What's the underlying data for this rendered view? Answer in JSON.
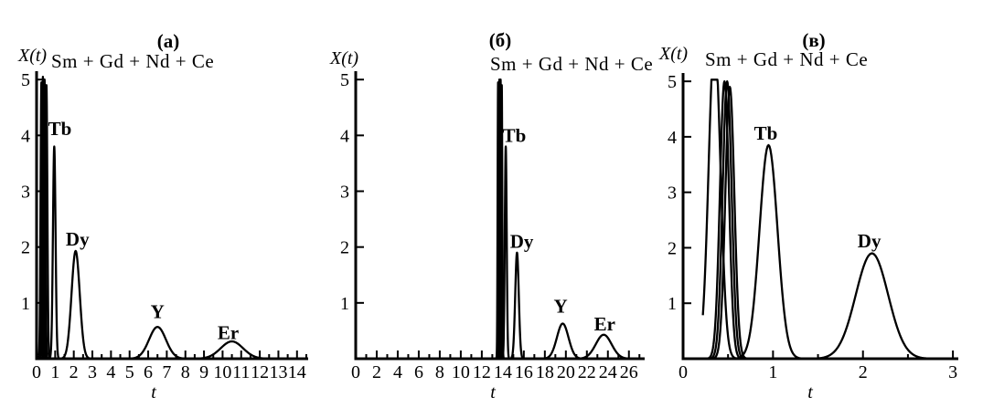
{
  "figure": {
    "background": "#ffffff",
    "line_color": "#000000"
  },
  "chart_data": [
    {
      "type": "line",
      "title": "(a)",
      "ylabel": "X(t)",
      "xlabel": "t",
      "mixture_label": "Sm + Gd + Nd + Ce",
      "x_range": [
        0,
        14.6
      ],
      "y_range": [
        0,
        5.15
      ],
      "x_tick_values": [
        0,
        1,
        2,
        3,
        4,
        5,
        6,
        7,
        8,
        9,
        10,
        11,
        12,
        13,
        14
      ],
      "x_tick_labels": [
        "0",
        "1",
        "2",
        "3",
        "4",
        "5",
        "6",
        "7",
        "8",
        "9",
        "10",
        "11",
        "12",
        "13",
        "14"
      ],
      "x_minor_step": 0.5,
      "y_tick_values": [
        1,
        2,
        3,
        4,
        5
      ],
      "y_tick_labels": [
        "1",
        "2",
        "3",
        "4",
        "5"
      ],
      "grid": false,
      "curves": [
        {
          "center": 0.26,
          "sigma": 0.045,
          "height": 4.95
        },
        {
          "center": 0.34,
          "sigma": 0.045,
          "height": 5.05
        },
        {
          "center": 0.43,
          "sigma": 0.045,
          "height": 5.0
        },
        {
          "center": 0.53,
          "sigma": 0.05,
          "height": 4.9
        },
        {
          "center": 0.95,
          "sigma": 0.07,
          "height": 3.8,
          "label": "Tb",
          "label_at": [
            1.25,
            4.12
          ]
        },
        {
          "center": 2.1,
          "sigma": 0.22,
          "height": 1.93,
          "label": "Dy",
          "label_at": [
            2.2,
            2.14
          ]
        },
        {
          "center": 6.5,
          "sigma": 0.45,
          "height": 0.57,
          "label": "Y",
          "label_at": [
            6.5,
            0.84
          ]
        },
        {
          "center": 10.5,
          "sigma": 0.6,
          "height": 0.31,
          "label": "Er",
          "label_at": [
            10.3,
            0.47
          ]
        }
      ]
    },
    {
      "type": "line",
      "title": "(б)",
      "ylabel": "X(t)",
      "xlabel": "t",
      "mixture_label": "Sm + Gd + Nd + Ce",
      "x_range": [
        0,
        27.5
      ],
      "y_range": [
        0,
        5.15
      ],
      "x_tick_values": [
        0,
        2,
        4,
        6,
        8,
        10,
        12,
        14,
        16,
        18,
        20,
        22,
        24,
        26
      ],
      "x_tick_labels": [
        "0",
        "2",
        "4",
        "6",
        "8",
        "10",
        "12",
        "14",
        "16",
        "18",
        "20",
        "22",
        "24",
        "26"
      ],
      "x_minor_step": 1,
      "y_tick_values": [
        1,
        2,
        3,
        4,
        5
      ],
      "y_tick_labels": [
        "1",
        "2",
        "3",
        "4",
        "5"
      ],
      "grid": false,
      "curves": [
        {
          "center": 13.55,
          "sigma": 0.045,
          "height": 4.95
        },
        {
          "center": 13.67,
          "sigma": 0.045,
          "height": 5.0
        },
        {
          "center": 13.79,
          "sigma": 0.045,
          "height": 5.0
        },
        {
          "center": 13.9,
          "sigma": 0.05,
          "height": 4.9
        },
        {
          "center": 14.28,
          "sigma": 0.09,
          "height": 3.8,
          "label": "Tb",
          "label_at": [
            15.1,
            4.0
          ]
        },
        {
          "center": 15.35,
          "sigma": 0.17,
          "height": 1.9,
          "label": "Dy",
          "label_at": [
            15.8,
            2.1
          ]
        },
        {
          "center": 19.7,
          "sigma": 0.55,
          "height": 0.63,
          "label": "Y",
          "label_at": [
            19.5,
            0.94
          ]
        },
        {
          "center": 23.6,
          "sigma": 0.75,
          "height": 0.43,
          "label": "Er",
          "label_at": [
            23.7,
            0.62
          ]
        }
      ]
    },
    {
      "type": "line",
      "title": "(в)",
      "ylabel": "X(t)",
      "xlabel": "t",
      "mixture_label": "Sm + Gd + Nd + Ce",
      "x_range": [
        0,
        3.06
      ],
      "y_range": [
        0,
        5.15
      ],
      "x_tick_values": [
        0,
        1,
        2,
        3
      ],
      "x_tick_labels": [
        "0",
        "1",
        "2",
        "3"
      ],
      "x_minor_step": 0.5,
      "y_tick_values": [
        1,
        2,
        3,
        4,
        5
      ],
      "y_tick_labels": [
        "1",
        "2",
        "3",
        "4",
        "5"
      ],
      "grid": false,
      "curves": [
        {
          "center": 0.35,
          "sigma": 0.065,
          "height": 5.8,
          "capped_at": 5.03,
          "draw_from": 0.22
        },
        {
          "center": 0.46,
          "sigma": 0.05,
          "height": 5.0
        },
        {
          "center": 0.49,
          "sigma": 0.05,
          "height": 5.0
        },
        {
          "center": 0.52,
          "sigma": 0.05,
          "height": 4.9
        },
        {
          "center": 0.95,
          "sigma": 0.1,
          "height": 3.85,
          "label": "Tb",
          "label_at": [
            0.92,
            4.06
          ]
        },
        {
          "center": 2.1,
          "sigma": 0.18,
          "height": 1.9,
          "label": "Dy",
          "label_at": [
            2.07,
            2.12
          ]
        }
      ]
    }
  ]
}
